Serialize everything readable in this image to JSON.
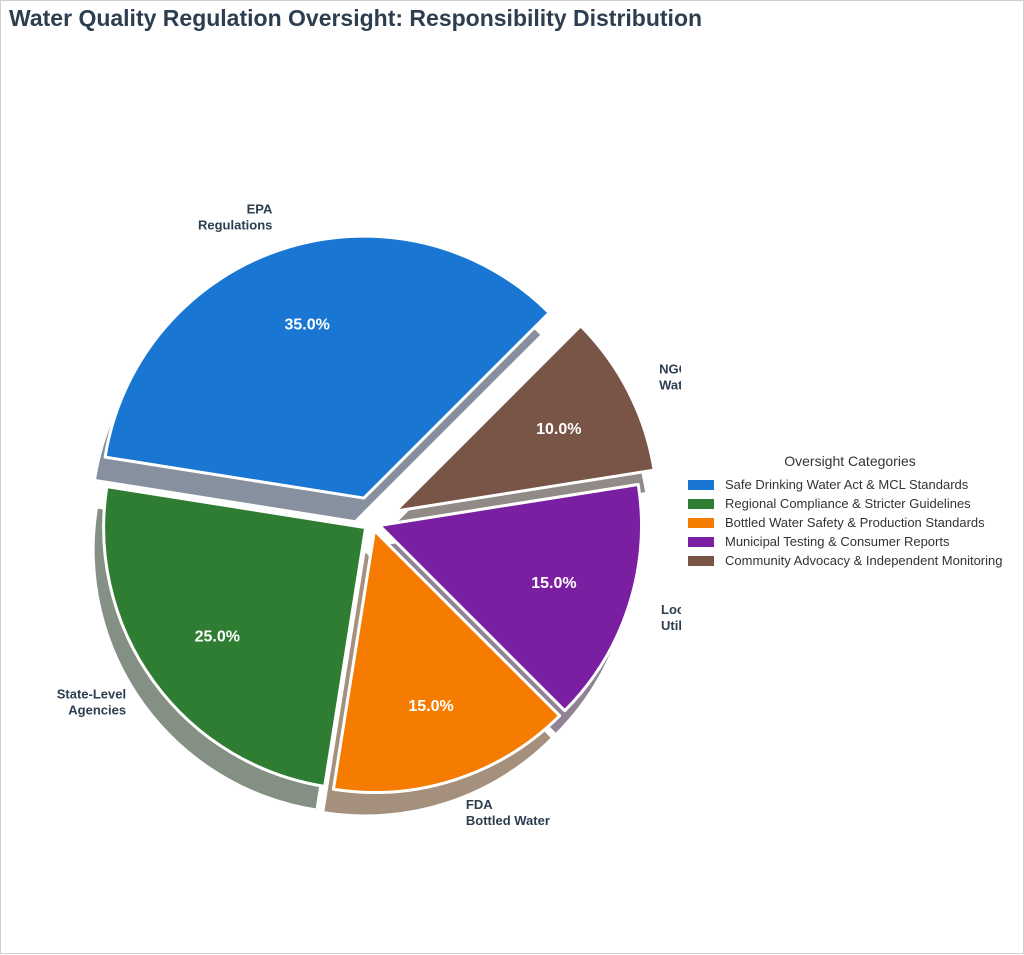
{
  "title": "Water Quality Regulation Oversight: Responsibility Distribution",
  "chart_data": {
    "type": "pie",
    "title": "Water Quality Regulation Oversight: Responsibility Distribution",
    "slices": [
      {
        "label_line1": "EPA",
        "label_line2": "Regulations",
        "value": 35.0,
        "pct_label": "35.0%",
        "color": "#1976d2",
        "shadow": "#86909e",
        "explode": 0.1
      },
      {
        "label_line1": "State-Level",
        "label_line2": "Agencies",
        "value": 25.0,
        "pct_label": "25.0%",
        "color": "#2e7d32",
        "shadow": "#849083",
        "explode": 0.03
      },
      {
        "label_line1": "FDA",
        "label_line2": "Bottled Water",
        "value": 15.0,
        "pct_label": "15.0%",
        "color": "#f57c00",
        "shadow": "#a4907d",
        "explode": 0.03
      },
      {
        "label_line1": "Local",
        "label_line2": "Utilities",
        "value": 15.0,
        "pct_label": "15.0%",
        "color": "#7b1fa2",
        "shadow": "#918395",
        "explode": 0.03
      },
      {
        "label_line1": "NGO",
        "label_line2": "Watchdogs",
        "value": 10.0,
        "pct_label": "10.0%",
        "color": "#795548",
        "shadow": "#918a86",
        "explode": 0.1
      }
    ],
    "start_angle_deg": 45,
    "direction": "counterclockwise",
    "legend": {
      "title": "Oversight Categories",
      "placement": "right",
      "entries": [
        "Safe Drinking Water Act & MCL Standards",
        "Regional Compliance & Stricter Guidelines",
        "Bottled Water Safety & Production Standards",
        "Municipal Testing & Consumer Reports",
        "Community Advocacy & Independent Monitoring"
      ]
    }
  }
}
